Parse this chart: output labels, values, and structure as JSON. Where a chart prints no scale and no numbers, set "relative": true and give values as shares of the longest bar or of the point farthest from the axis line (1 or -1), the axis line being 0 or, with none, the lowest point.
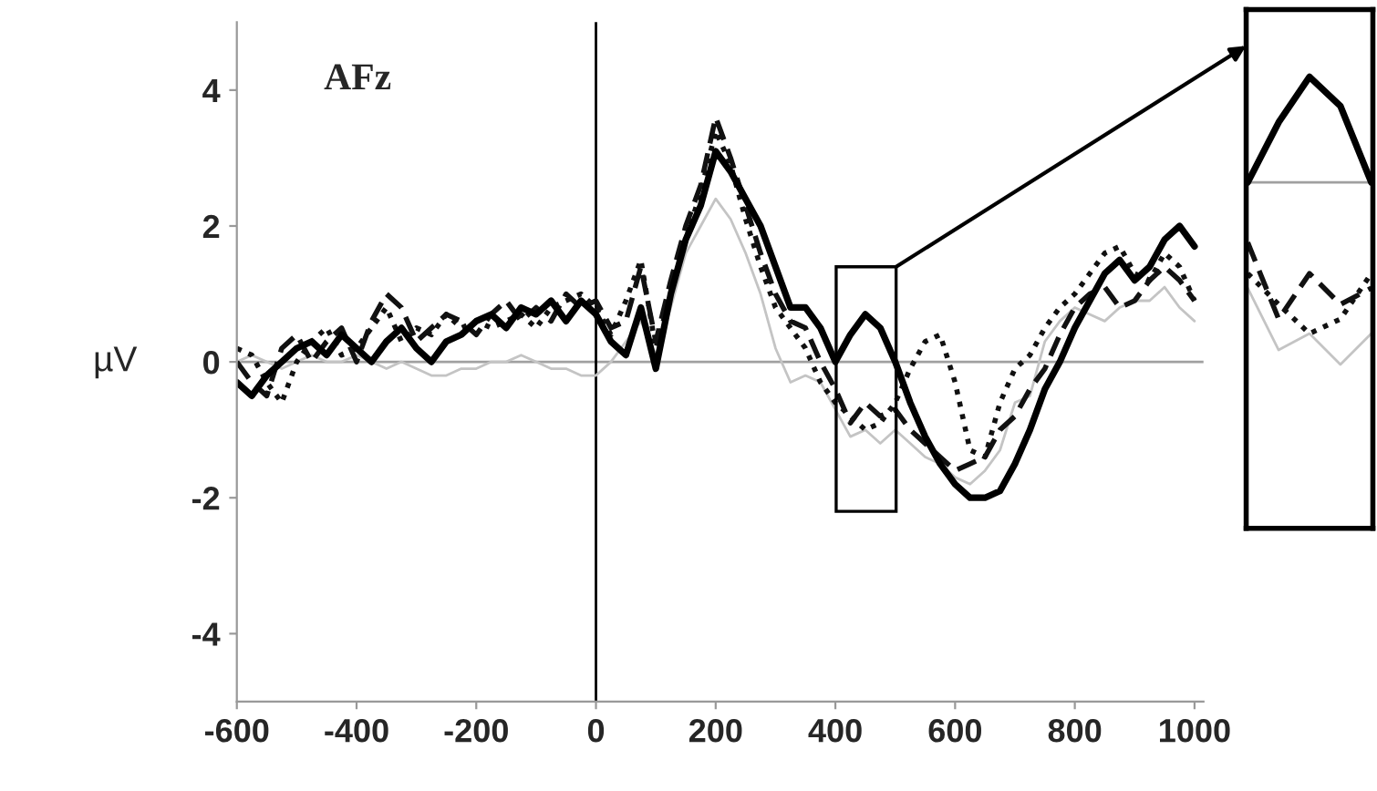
{
  "chart_data": [
    {
      "type": "line",
      "ylabel": "µV",
      "annotations": [
        "AFz"
      ],
      "x": [
        -600,
        -575,
        -550,
        -525,
        -500,
        -475,
        -450,
        -425,
        -400,
        -375,
        -350,
        -325,
        -300,
        -275,
        -250,
        -225,
        -200,
        -175,
        -150,
        -125,
        -100,
        -75,
        -50,
        -25,
        0,
        25,
        50,
        75,
        100,
        125,
        150,
        175,
        200,
        225,
        250,
        275,
        300,
        325,
        350,
        375,
        400,
        425,
        450,
        475,
        500,
        525,
        550,
        575,
        600,
        625,
        650,
        675,
        700,
        725,
        750,
        775,
        800,
        825,
        850,
        875,
        900,
        925,
        950,
        975,
        1000
      ],
      "series": [
        {
          "color": "#c4c4c4",
          "line_style": "solid",
          "values": [
            0.0,
            0.1,
            0.0,
            -0.1,
            0.0,
            0.1,
            0.0,
            0.0,
            0.1,
            0.0,
            -0.1,
            0.0,
            -0.1,
            -0.2,
            -0.2,
            -0.1,
            -0.1,
            0.0,
            0.0,
            0.1,
            0.0,
            -0.1,
            -0.1,
            -0.2,
            -0.2,
            0.0,
            0.3,
            0.6,
            0.1,
            0.8,
            1.6,
            2.0,
            2.4,
            2.1,
            1.6,
            1.0,
            0.2,
            -0.3,
            -0.2,
            -0.3,
            -0.7,
            -1.1,
            -1.0,
            -1.2,
            -1.0,
            -1.2,
            -1.4,
            -1.5,
            -1.7,
            -1.8,
            -1.6,
            -1.3,
            -0.6,
            -0.5,
            0.3,
            0.6,
            0.8,
            0.7,
            0.6,
            0.8,
            0.9,
            0.9,
            1.1,
            0.8,
            0.6
          ]
        },
        {
          "color": "#111111",
          "line_style": "dotted",
          "values": [
            0.2,
            0.1,
            -0.3,
            -0.6,
            0.0,
            0.3,
            0.5,
            0.1,
            0.2,
            0.5,
            0.8,
            0.3,
            0.5,
            0.4,
            0.7,
            0.5,
            0.6,
            0.5,
            0.6,
            0.7,
            0.5,
            0.8,
            0.9,
            1.0,
            0.8,
            0.4,
            0.9,
            1.5,
            0.2,
            1.0,
            1.8,
            2.5,
            3.4,
            2.9,
            2.1,
            1.4,
            0.8,
            0.5,
            0.2,
            -0.3,
            -0.6,
            -0.8,
            -1.0,
            -0.9,
            -0.6,
            -0.1,
            0.3,
            0.4,
            -0.3,
            -1.3,
            -1.4,
            -0.6,
            -0.1,
            0.1,
            0.5,
            0.8,
            1.0,
            1.3,
            1.6,
            1.7,
            1.3,
            1.2,
            1.6,
            1.4,
            0.9
          ]
        },
        {
          "color": "#111111",
          "line_style": "dashed",
          "values": [
            0.0,
            -0.3,
            -0.5,
            0.2,
            0.4,
            0.0,
            0.3,
            0.5,
            0.0,
            0.6,
            1.0,
            0.8,
            0.3,
            0.5,
            0.7,
            0.6,
            0.4,
            0.7,
            0.9,
            0.6,
            0.8,
            0.6,
            1.0,
            0.8,
            0.9,
            0.5,
            0.6,
            1.4,
            0.3,
            1.2,
            2.0,
            2.6,
            3.6,
            3.0,
            2.3,
            1.6,
            1.0,
            0.6,
            0.5,
            0.0,
            -0.4,
            -0.9,
            -0.6,
            -0.8,
            -0.7,
            -1.0,
            -1.2,
            -1.4,
            -1.6,
            -1.5,
            -1.4,
            -1.0,
            -0.8,
            -0.4,
            -0.1,
            0.4,
            0.8,
            1.0,
            1.1,
            0.8,
            0.9,
            1.2,
            1.4,
            1.2,
            0.9
          ]
        },
        {
          "color": "#000000",
          "line_style": "solid",
          "values": [
            -0.3,
            -0.5,
            -0.2,
            0.0,
            0.2,
            0.3,
            0.1,
            0.4,
            0.2,
            0.0,
            0.3,
            0.5,
            0.2,
            0.0,
            0.3,
            0.4,
            0.6,
            0.7,
            0.5,
            0.8,
            0.7,
            0.9,
            0.6,
            0.9,
            0.7,
            0.3,
            0.1,
            0.8,
            -0.1,
            1.0,
            1.8,
            2.3,
            3.1,
            2.8,
            2.4,
            2.0,
            1.4,
            0.8,
            0.8,
            0.5,
            0.0,
            0.4,
            0.7,
            0.5,
            0.0,
            -0.6,
            -1.1,
            -1.5,
            -1.8,
            -2.0,
            -2.0,
            -1.9,
            -1.5,
            -1.0,
            -0.4,
            0.0,
            0.5,
            0.9,
            1.3,
            1.5,
            1.2,
            1.4,
            1.8,
            2.0,
            1.7
          ]
        }
      ],
      "xlim": [
        -600,
        1015
      ],
      "xticks": [
        -600,
        -400,
        -200,
        0,
        200,
        400,
        600,
        800,
        1000
      ],
      "ylim": [
        -5,
        5
      ],
      "yticks": [
        -4,
        -2,
        0,
        2,
        4
      ],
      "ref_lines": [
        {
          "axis": "y",
          "value": 0,
          "color": "#a0a0a0"
        },
        {
          "axis": "x",
          "value": 0,
          "color": "#000000"
        }
      ],
      "grid": false
    },
    {
      "type": "line",
      "relative": true,
      "categories": [
        null,
        null,
        null,
        null,
        null
      ],
      "series": [
        {
          "color": "#c4c4c4",
          "line_style": "solid",
          "values": [
            -0.58,
            -0.92,
            -0.83,
            -1.0,
            -0.83
          ]
        },
        {
          "color": "#111111",
          "line_style": "dotted",
          "values": [
            -0.5,
            -0.67,
            -0.83,
            -0.75,
            -0.5
          ]
        },
        {
          "color": "#111111",
          "line_style": "dashed",
          "values": [
            -0.33,
            -0.75,
            -0.5,
            -0.67,
            -0.58
          ]
        },
        {
          "color": "#000000",
          "line_style": "solid",
          "values": [
            0.0,
            0.33,
            0.58,
            0.42,
            0.0
          ]
        }
      ]
    }
  ]
}
